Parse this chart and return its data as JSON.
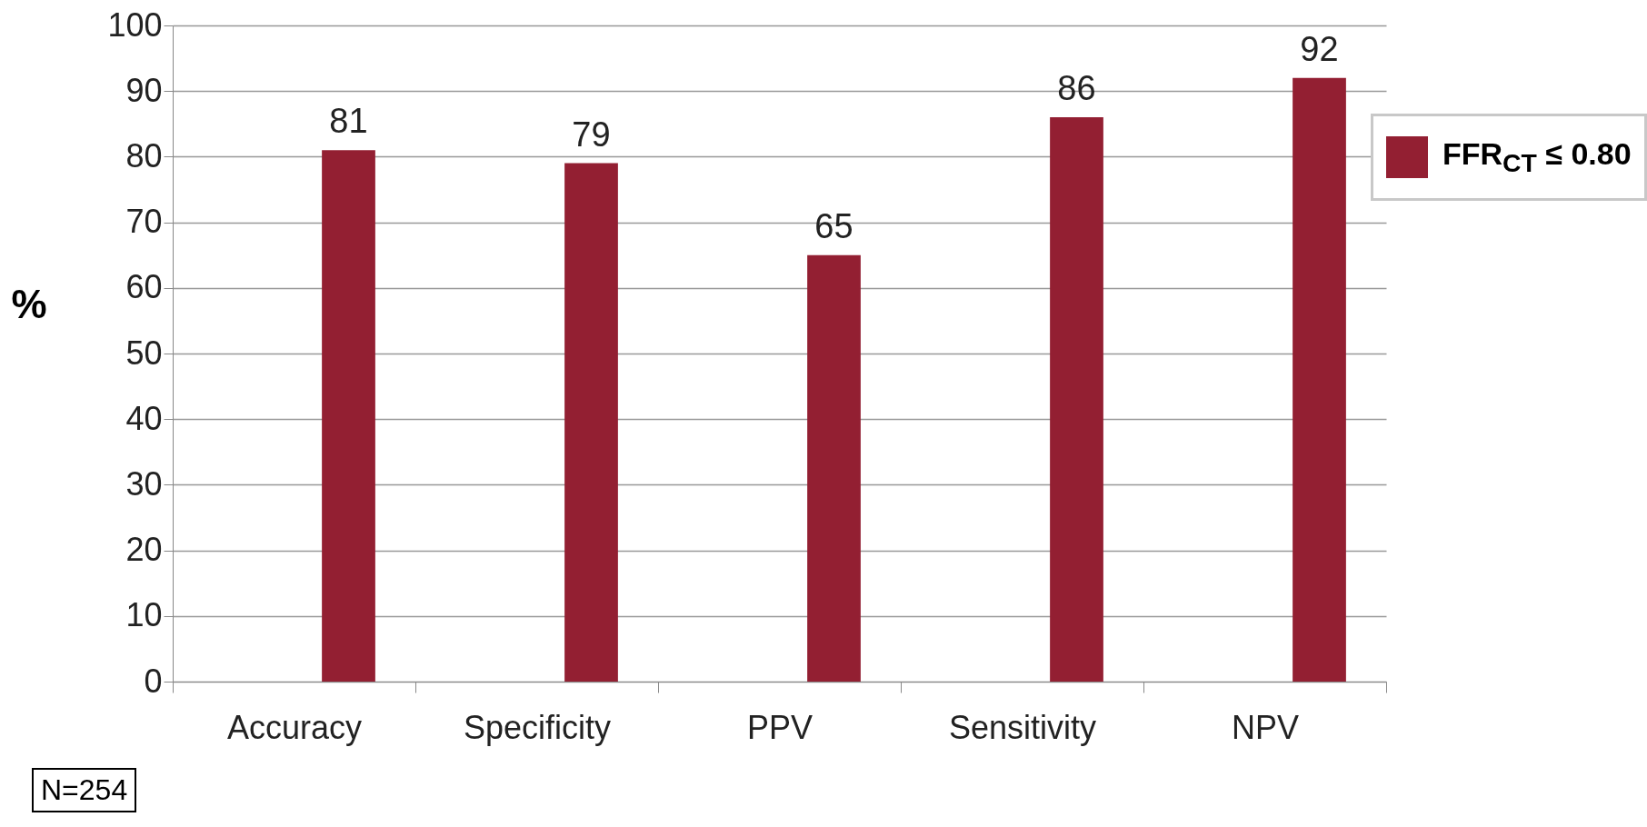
{
  "chart_data": {
    "type": "bar",
    "categories": [
      "Accuracy",
      "Specificity",
      "PPV",
      "Sensitivity",
      "NPV"
    ],
    "series": [
      {
        "name": "FFR$_{CT}$ ≤ 0.80",
        "color": "#931f32",
        "values": [
          81,
          79,
          65,
          86,
          92
        ]
      }
    ],
    "ylabel": "%",
    "ylim": [
      0,
      100
    ],
    "yticks": [
      0,
      10,
      20,
      30,
      40,
      50,
      60,
      70,
      80,
      90,
      100
    ],
    "grid": "y",
    "data_labels": true,
    "legend": "top right",
    "annotations": [
      "N=254"
    ]
  }
}
